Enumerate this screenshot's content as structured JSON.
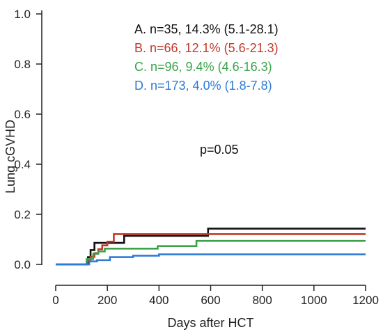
{
  "chart_data": {
    "type": "line",
    "subtype": "step-cumulative-incidence",
    "xlabel": "Days after HCT",
    "ylabel": "Lung cGVHD",
    "xlim": [
      0,
      1200
    ],
    "ylim": [
      0,
      1.0
    ],
    "xticks": [
      0,
      200,
      400,
      600,
      800,
      1000,
      1200
    ],
    "yticks": [
      0.0,
      0.2,
      0.4,
      0.6,
      0.8,
      1.0
    ],
    "ytick_labels": [
      "0.0",
      "0.2",
      "0.4",
      "0.6",
      "0.8",
      "1.0"
    ],
    "grid": false,
    "legend_position": "top-right",
    "annotation": "p=0.05",
    "series": [
      {
        "name": "A. n=35, 14.3% (5.1-28.1)",
        "color": "#111111",
        "x": [
          0,
          110,
          125,
          135,
          150,
          190,
          265,
          590,
          1200
        ],
        "y": [
          0,
          0,
          0.029,
          0.057,
          0.086,
          0.086,
          0.114,
          0.143,
          0.143
        ]
      },
      {
        "name": "B. n=66, 12.1% (5.6-21.3)",
        "color": "#c0392b",
        "x": [
          0,
          95,
          120,
          135,
          150,
          165,
          180,
          200,
          225,
          1200
        ],
        "y": [
          0,
          0,
          0.015,
          0.03,
          0.045,
          0.061,
          0.076,
          0.091,
          0.121,
          0.121
        ]
      },
      {
        "name": "C. n=96, 9.4% (4.6-16.3)",
        "color": "#3aa34a",
        "x": [
          0,
          100,
          120,
          145,
          165,
          190,
          395,
          545,
          1200
        ],
        "y": [
          0,
          0,
          0.021,
          0.042,
          0.052,
          0.063,
          0.073,
          0.094,
          0.094
        ]
      },
      {
        "name": "D. n=173, 4.0% (1.8-7.8)",
        "color": "#2f7bd6",
        "x": [
          0,
          110,
          130,
          160,
          210,
          300,
          400,
          1200
        ],
        "y": [
          0,
          0,
          0.012,
          0.017,
          0.029,
          0.035,
          0.04,
          0.04
        ]
      }
    ]
  }
}
